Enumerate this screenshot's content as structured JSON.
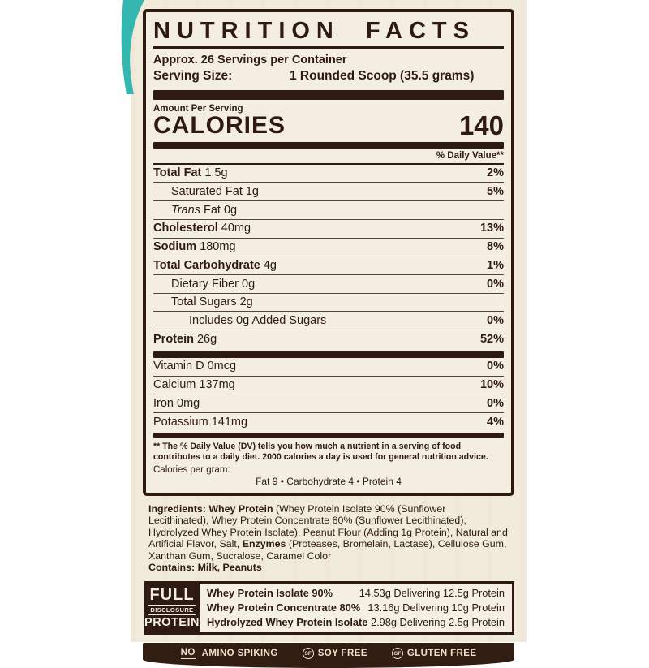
{
  "colors": {
    "dark_brown": "#2e1a10",
    "cream_panel": "#f3eee0",
    "teal_accent": "#35b7b1",
    "bar_text": "#efe2cd"
  },
  "header": {
    "title": "NUTRITION FACTS",
    "servings": "Approx. 26 Servings per Container",
    "serving_size_label": "Serving Size:",
    "serving_size_value": "1 Rounded Scoop (35.5 grams)"
  },
  "calories": {
    "section_label": "Amount Per Serving",
    "label": "CALORIES",
    "value": "140"
  },
  "daily_value_header": "% Daily Value**",
  "nutrients": [
    {
      "label": "Total Fat",
      "amount": "1.5g",
      "dv": "2%"
    },
    {
      "label": "Saturated Fat",
      "amount": "1g",
      "dv": "5%"
    },
    {
      "label": "Trans",
      "amount": "Fat 0g",
      "dv": ""
    },
    {
      "label": "Cholesterol",
      "amount": "40mg",
      "dv": "13%"
    },
    {
      "label": "Sodium",
      "amount": "180mg",
      "dv": "8%"
    },
    {
      "label": "Total Carbohydrate",
      "amount": "4g",
      "dv": "1%"
    },
    {
      "label": "Dietary Fiber",
      "amount": "0g",
      "dv": "0%"
    },
    {
      "label": "Total Sugars",
      "amount": "2g",
      "dv": ""
    },
    {
      "label": "Includes 0g Added Sugars",
      "amount": "",
      "dv": "0%"
    },
    {
      "label": "Protein",
      "amount": "26g",
      "dv": "52%"
    }
  ],
  "vitamins": [
    {
      "label": "Vitamin D",
      "amount": "0mcg",
      "dv": "0%"
    },
    {
      "label": "Calcium",
      "amount": "137mg",
      "dv": "10%"
    },
    {
      "label": "Iron",
      "amount": "0mg",
      "dv": "0%"
    },
    {
      "label": "Potassium",
      "amount": "141mg",
      "dv": "4%"
    }
  ],
  "footnote": {
    "text": "** The % Daily Value (DV) tells you how much a nutrient in a serving of food contributes to a daily diet. 2000 calories a day is used for general nutrition advice.",
    "calories_per_gram_label": "Calories per gram:",
    "calories_per_gram_values": "Fat 9 • Carbohydrate 4 • Protein 4"
  },
  "ingredients": {
    "segments": [
      {
        "t": "Ingredients: ",
        "b": 1
      },
      {
        "t": "Whey Protein ",
        "b": 1
      },
      {
        "t": "(Whey Protein Isolate 90% (Sunflower Lecithinated), Whey Protein Concentrate 80% (Sunflower Lecithinated), Hydrolyzed Whey Protein Isolate), Peanut Flour (Adding 1g Protein), Natural and Artificial Flavor, Salt, ",
        "b": 0
      },
      {
        "t": "Enzymes ",
        "b": 1
      },
      {
        "t": "(Proteases, Bromelain, Lactase), Cellulose Gum, Xanthan Gum, Sucralose, Caramel Color",
        "b": 0
      }
    ],
    "contains": "Contains: Milk, Peanuts"
  },
  "full_disclosure": {
    "badge": {
      "line1": "FULL",
      "line2": "DISCLOSURE",
      "line3": "PROTEIN"
    },
    "rows": [
      {
        "name": "Whey Protein Isolate 90%",
        "value": "14.53g Delivering 12.5g Protein"
      },
      {
        "name": "Whey Protein Concentrate 80%",
        "value": "13.16g Delivering 10g Protein"
      },
      {
        "name": "Hydrolyzed Whey Protein Isolate",
        "value": "2.98g Delivering 2.5g Protein"
      }
    ]
  },
  "claims": {
    "no_word": "NO",
    "no_rest": "AMINO SPIKING",
    "sf_icon": "SF",
    "soy_free": "SOY FREE",
    "gf_icon": "GF",
    "gluten_free": "GLUTEN FREE"
  }
}
